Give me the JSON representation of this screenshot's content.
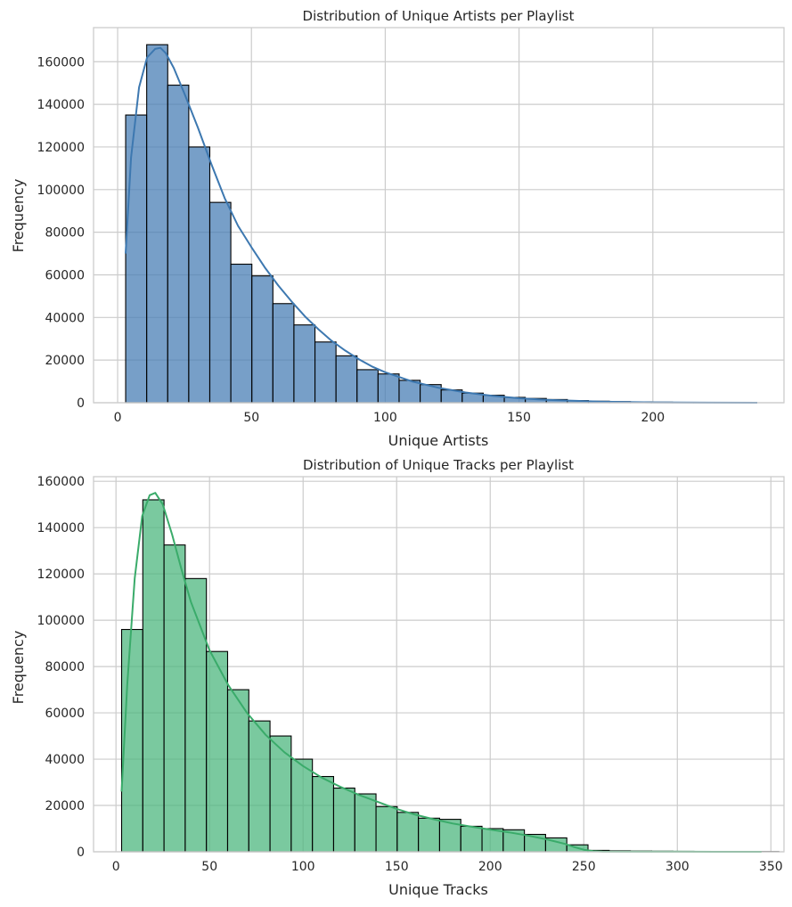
{
  "chart_data": [
    {
      "type": "bar",
      "title": "Distribution of Unique Artists per Playlist",
      "xlabel": "Unique Artists",
      "ylabel": "Frequency",
      "xlim": [
        -9,
        249
      ],
      "ylim": [
        0,
        176000
      ],
      "xticks": [
        0,
        50,
        100,
        150,
        200
      ],
      "yticks": [
        0,
        20000,
        40000,
        60000,
        80000,
        100000,
        120000,
        140000,
        160000
      ],
      "grid": true,
      "bar_color": "#4a7fb5",
      "line_color": "#3d78b0",
      "bin_start": 3,
      "bin_width": 7.86,
      "values": [
        135000,
        168000,
        149000,
        120000,
        94000,
        65000,
        59500,
        46500,
        36500,
        28500,
        22000,
        15500,
        13500,
        10500,
        8500,
        6000,
        4500,
        3500,
        2500,
        2000,
        1500,
        1000,
        700,
        500,
        350,
        250,
        150,
        100,
        80,
        40
      ],
      "kde": {
        "x": [
          3,
          5,
          8,
          11,
          14,
          16,
          18,
          21,
          25,
          30,
          35,
          40,
          45,
          50,
          55,
          60,
          65,
          70,
          75,
          80,
          85,
          90,
          95,
          100,
          110,
          120,
          130,
          140,
          150,
          160,
          170,
          180,
          190,
          200,
          220,
          239
        ],
        "y": [
          70000,
          115000,
          148000,
          162000,
          166000,
          166500,
          164000,
          157000,
          145000,
          129000,
          112000,
          96000,
          83000,
          73000,
          63500,
          55000,
          47500,
          40500,
          34500,
          29000,
          24500,
          20500,
          17000,
          14300,
          10000,
          7000,
          4800,
          3200,
          2100,
          1400,
          900,
          550,
          330,
          180,
          60,
          20
        ]
      }
    },
    {
      "type": "bar",
      "title": "Distribution of Unique Tracks per Playlist",
      "xlabel": "Unique Tracks",
      "ylabel": "Frequency",
      "xlim": [
        -12,
        357
      ],
      "ylim": [
        0,
        162000
      ],
      "xticks": [
        0,
        50,
        100,
        150,
        200,
        250,
        300,
        350
      ],
      "yticks": [
        0,
        20000,
        40000,
        60000,
        80000,
        100000,
        120000,
        140000,
        160000
      ],
      "grid": true,
      "bar_color": "#4db77f",
      "line_color": "#3aab6a",
      "bin_start": 3,
      "bin_width": 11.33,
      "values": [
        96000,
        152000,
        132500,
        118000,
        86500,
        70000,
        56500,
        50000,
        40000,
        32500,
        27500,
        25000,
        19500,
        17000,
        14500,
        14000,
        11000,
        10000,
        9500,
        7500,
        6000,
        3000,
        600,
        400,
        300,
        250,
        200,
        150,
        100,
        100,
        80
      ],
      "kde": {
        "x": [
          3,
          6,
          10,
          14,
          18,
          21,
          25,
          30,
          35,
          40,
          50,
          60,
          70,
          80,
          90,
          100,
          110,
          120,
          130,
          140,
          150,
          160,
          170,
          180,
          190,
          200,
          210,
          220,
          230,
          240,
          245,
          250,
          255,
          260,
          280,
          300,
          320,
          345
        ],
        "y": [
          26000,
          72000,
          118000,
          145000,
          154000,
          155000,
          150000,
          137000,
          122000,
          108000,
          87000,
          72000,
          60000,
          50500,
          43000,
          37000,
          32000,
          28000,
          24500,
          21500,
          18500,
          16000,
          14000,
          12200,
          10800,
          9600,
          8400,
          7000,
          5400,
          3400,
          2000,
          900,
          300,
          120,
          40,
          20,
          10,
          5
        ]
      }
    }
  ]
}
